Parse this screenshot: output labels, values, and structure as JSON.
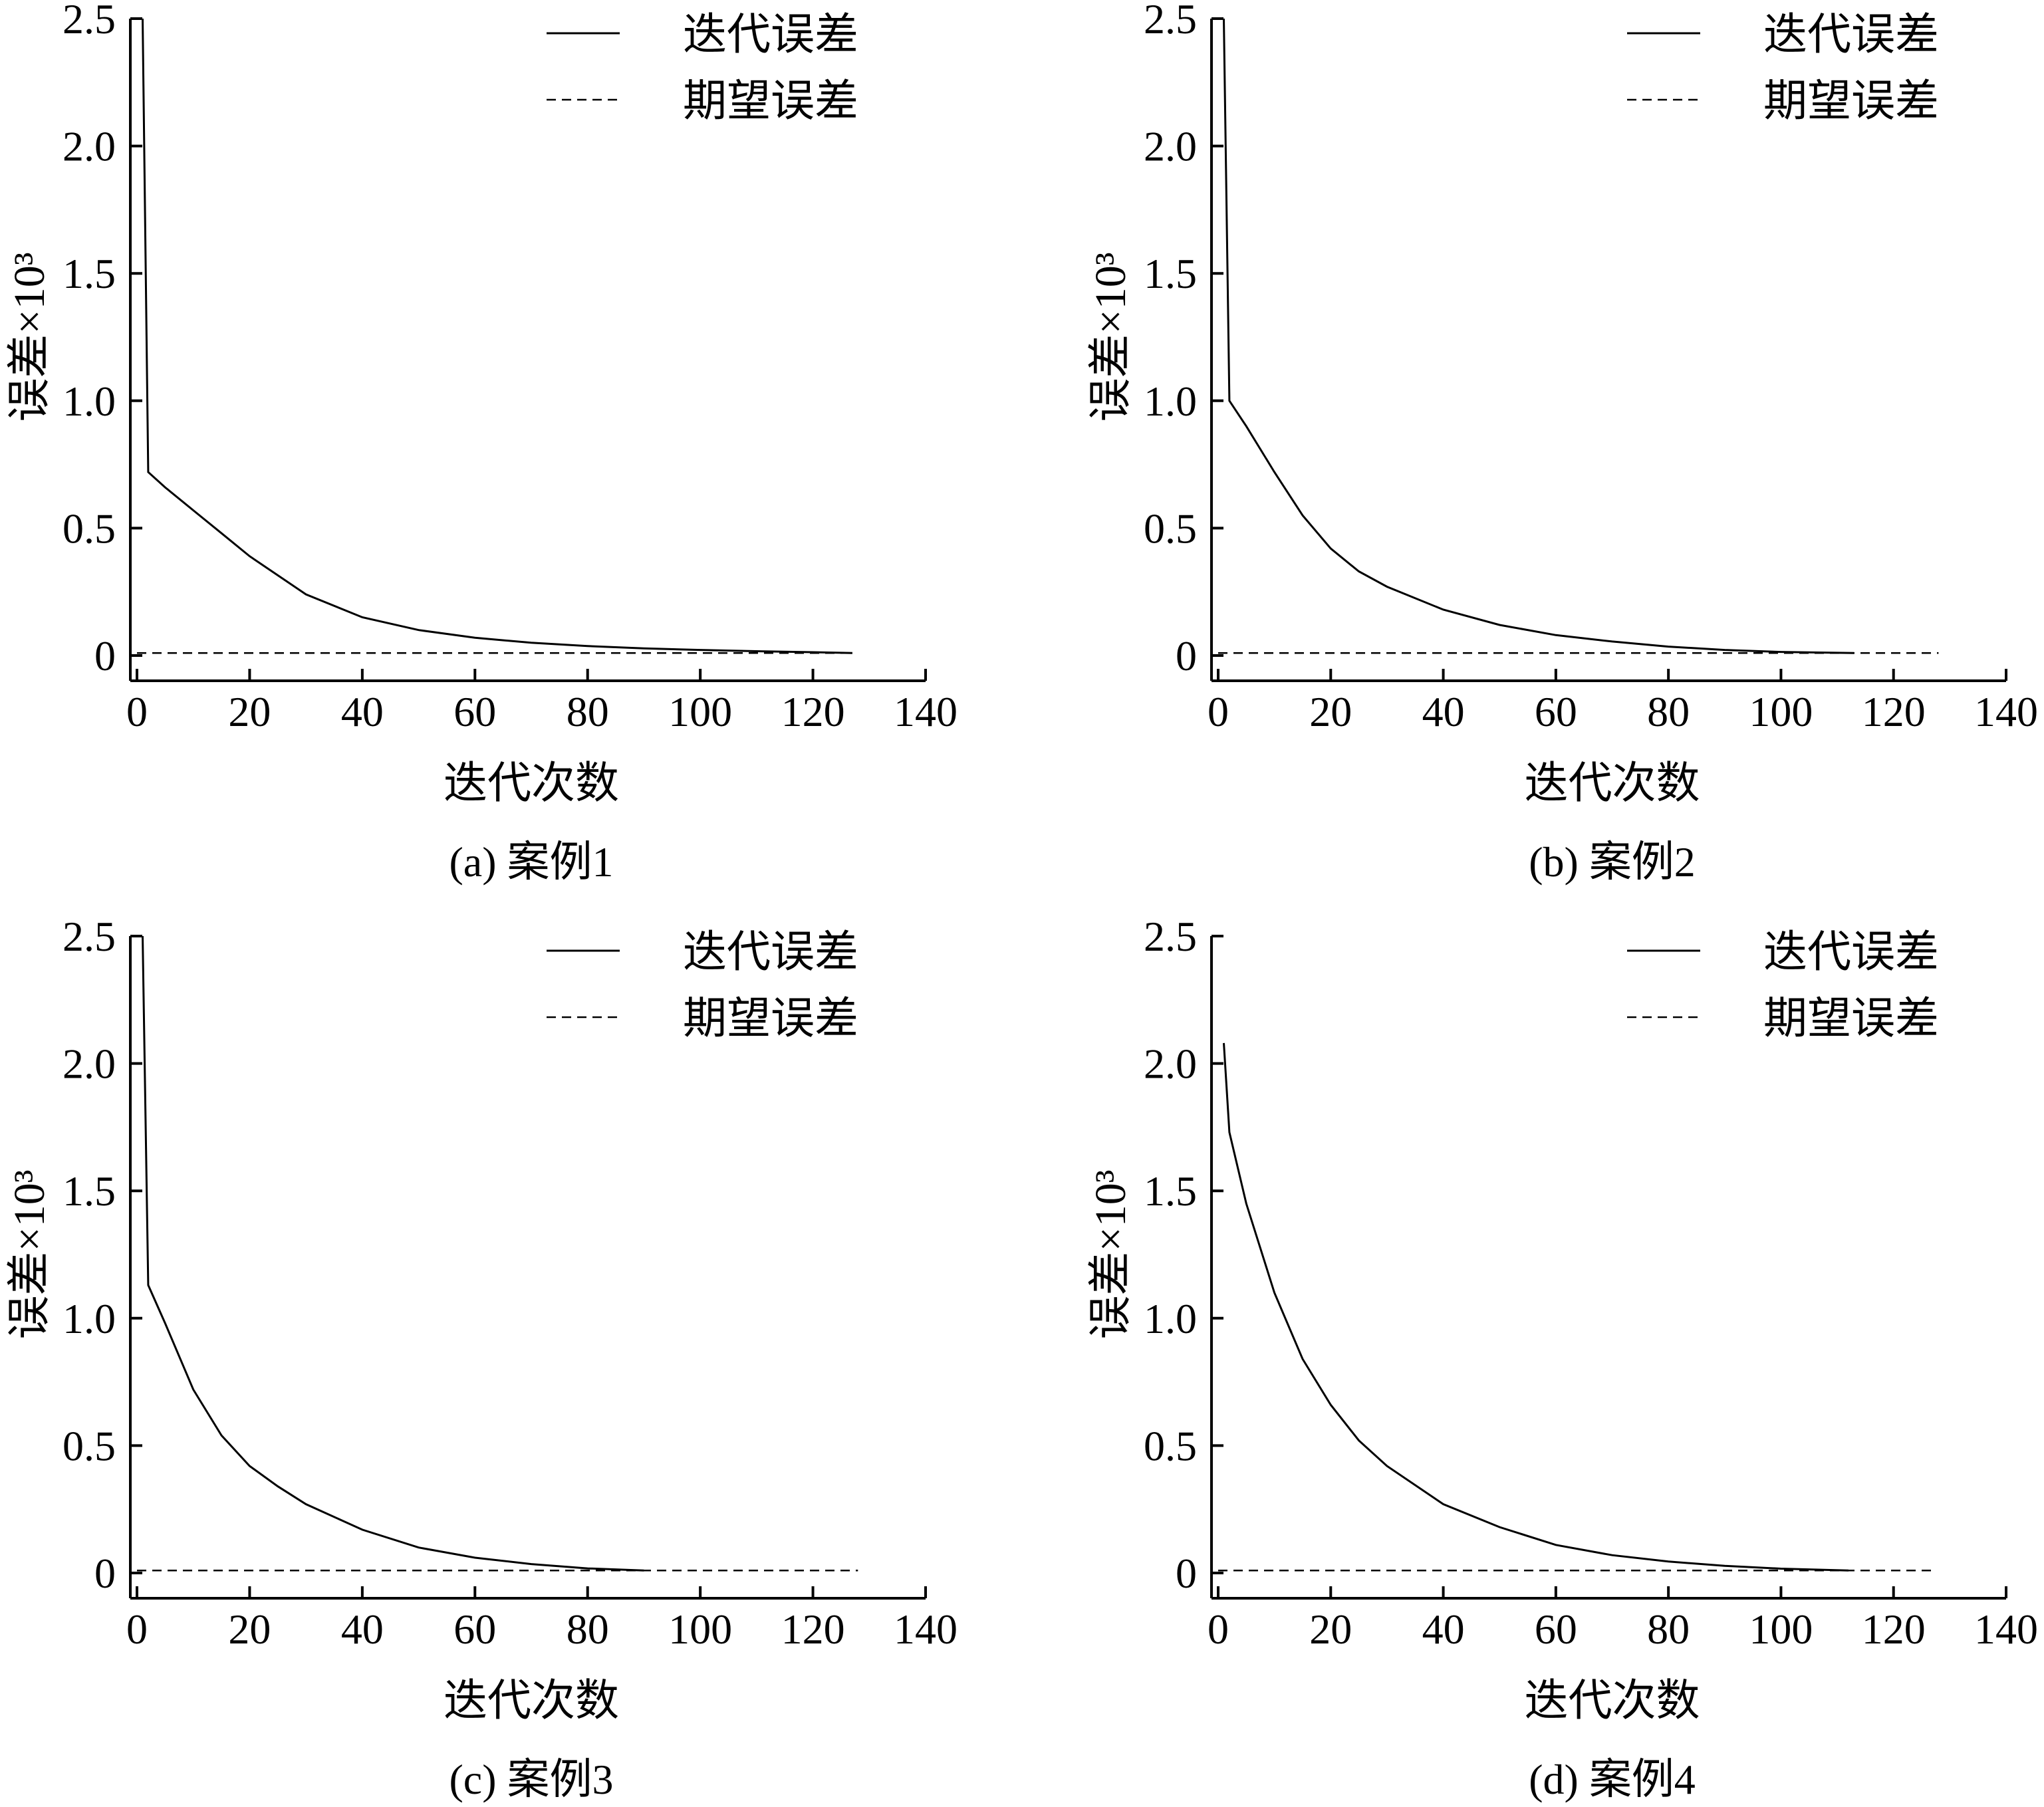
{
  "chart_data": [
    {
      "type": "line",
      "caption": "(a) 案例1",
      "xlabel": "迭代次数",
      "ylabel": "误差×10³",
      "xlim": [
        0,
        140
      ],
      "ylim": [
        0,
        2.5
      ],
      "xticks": [
        "0",
        "20",
        "40",
        "60",
        "80",
        "100",
        "120",
        "140"
      ],
      "yticks": [
        "0",
        "0.5",
        "1.0",
        "1.5",
        "2.0",
        "2.5"
      ],
      "legend_position": "top-right",
      "series": [
        {
          "name": "迭代误差",
          "style": "solid",
          "x": [
            1,
            2,
            5,
            10,
            15,
            20,
            30,
            40,
            50,
            60,
            70,
            80,
            90,
            100,
            110,
            120,
            127
          ],
          "y": [
            2.5,
            0.72,
            0.66,
            0.57,
            0.48,
            0.39,
            0.24,
            0.15,
            0.1,
            0.07,
            0.05,
            0.037,
            0.028,
            0.022,
            0.017,
            0.013,
            0.01
          ]
        },
        {
          "name": "期望误差",
          "style": "dashed",
          "x": [
            0,
            127
          ],
          "y": [
            0.01,
            0.01
          ]
        }
      ]
    },
    {
      "type": "line",
      "caption": "(b) 案例2",
      "xlabel": "迭代次数",
      "ylabel": "误差×10³",
      "xlim": [
        0,
        140
      ],
      "ylim": [
        0,
        2.5
      ],
      "xticks": [
        "0",
        "20",
        "40",
        "60",
        "80",
        "100",
        "120",
        "140"
      ],
      "yticks": [
        "0",
        "0.5",
        "1.0",
        "1.5",
        "2.0",
        "2.5"
      ],
      "legend_position": "top-right",
      "series": [
        {
          "name": "迭代误差",
          "style": "solid",
          "x": [
            1,
            2,
            5,
            10,
            15,
            20,
            25,
            30,
            40,
            50,
            60,
            70,
            80,
            90,
            100,
            113
          ],
          "y": [
            2.5,
            1.0,
            0.9,
            0.72,
            0.55,
            0.42,
            0.33,
            0.27,
            0.18,
            0.12,
            0.08,
            0.055,
            0.035,
            0.022,
            0.014,
            0.01
          ]
        },
        {
          "name": "期望误差",
          "style": "dashed",
          "x": [
            0,
            128
          ],
          "y": [
            0.01,
            0.01
          ]
        }
      ]
    },
    {
      "type": "line",
      "caption": "(c) 案例3",
      "xlabel": "迭代次数",
      "ylabel": "误差×10³",
      "xlim": [
        0,
        140
      ],
      "ylim": [
        0,
        2.5
      ],
      "xticks": [
        "0",
        "20",
        "40",
        "60",
        "80",
        "100",
        "120",
        "140"
      ],
      "yticks": [
        "0",
        "0.5",
        "1.0",
        "1.5",
        "2.0",
        "2.5"
      ],
      "legend_position": "top-right",
      "series": [
        {
          "name": "迭代误差",
          "style": "solid",
          "x": [
            1,
            2,
            5,
            10,
            15,
            20,
            25,
            30,
            40,
            50,
            60,
            70,
            80,
            90
          ],
          "y": [
            2.5,
            1.13,
            0.98,
            0.72,
            0.54,
            0.42,
            0.34,
            0.27,
            0.17,
            0.1,
            0.06,
            0.035,
            0.018,
            0.01
          ]
        },
        {
          "name": "期望误差",
          "style": "dashed",
          "x": [
            0,
            128
          ],
          "y": [
            0.01,
            0.01
          ]
        }
      ]
    },
    {
      "type": "line",
      "caption": "(d) 案例4",
      "xlabel": "迭代次数",
      "ylabel": "误差×10³",
      "xlim": [
        0,
        140
      ],
      "ylim": [
        0,
        2.5
      ],
      "xticks": [
        "0",
        "20",
        "40",
        "60",
        "80",
        "100",
        "120",
        "140"
      ],
      "yticks": [
        "0",
        "0.5",
        "1.0",
        "1.5",
        "2.0",
        "2.5"
      ],
      "legend_position": "top-right",
      "series": [
        {
          "name": "迭代误差",
          "style": "solid",
          "x": [
            1,
            2,
            5,
            10,
            15,
            20,
            25,
            30,
            40,
            50,
            60,
            70,
            80,
            90,
            100,
            112
          ],
          "y": [
            2.08,
            1.73,
            1.45,
            1.1,
            0.84,
            0.66,
            0.52,
            0.42,
            0.27,
            0.18,
            0.11,
            0.07,
            0.045,
            0.028,
            0.017,
            0.01
          ]
        },
        {
          "name": "期望误差",
          "style": "dashed",
          "x": [
            0,
            127
          ],
          "y": [
            0.01,
            0.01
          ]
        }
      ]
    }
  ]
}
